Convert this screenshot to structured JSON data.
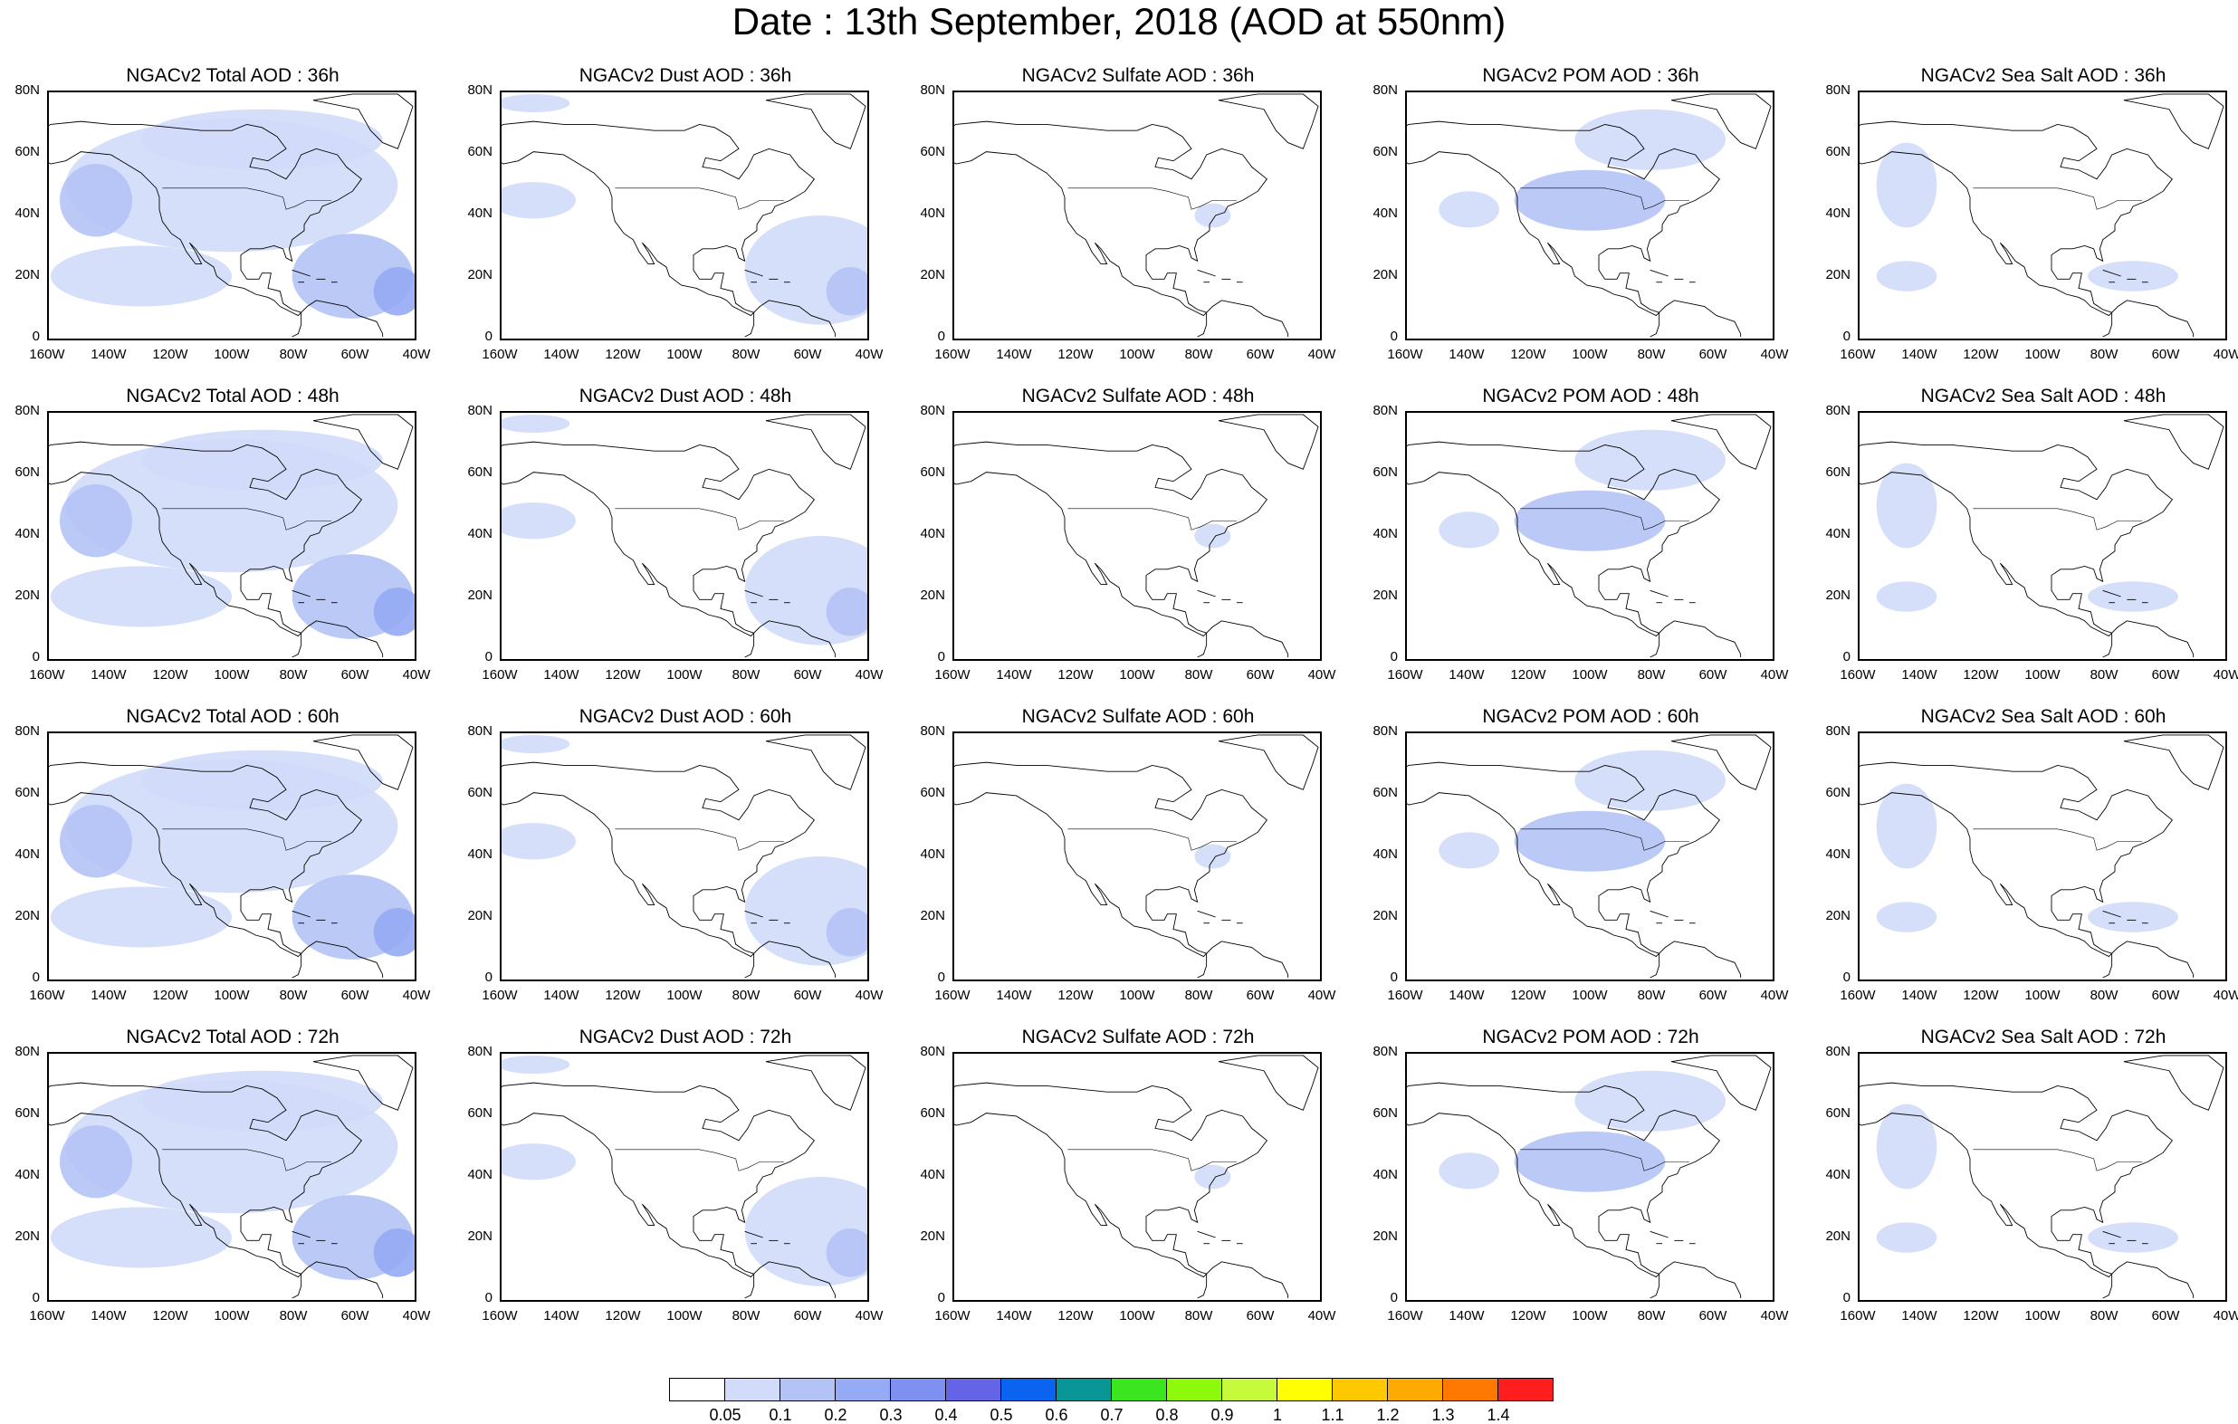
{
  "title": "Date : 13th September, 2018 (AOD at 550nm)",
  "lat_ticks": [
    "80N",
    "60N",
    "40N",
    "20N",
    "0"
  ],
  "lon_ticks": [
    "160W",
    "140W",
    "120W",
    "100W",
    "80W",
    "60W",
    "40W"
  ],
  "panels": [
    [
      "NGACv2 Total AOD : 36h",
      "NGACv2 Dust AOD : 36h",
      "NGACv2 Sulfate AOD : 36h",
      "NGACv2 POM AOD : 36h",
      "NGACv2 Sea Salt AOD : 36h"
    ],
    [
      "NGACv2 Total AOD : 48h",
      "NGACv2 Dust AOD : 48h",
      "NGACv2 Sulfate AOD : 48h",
      "NGACv2 POM AOD : 48h",
      "NGACv2 Sea Salt AOD : 48h"
    ],
    [
      "NGACv2 Total AOD : 60h",
      "NGACv2 Dust AOD : 60h",
      "NGACv2 Sulfate AOD : 60h",
      "NGACv2 POM AOD : 60h",
      "NGACv2 Sea Salt AOD : 60h"
    ],
    [
      "NGACv2 Total AOD : 72h",
      "NGACv2 Dust AOD : 72h",
      "NGACv2 Sulfate AOD : 72h",
      "NGACv2 POM AOD : 72h",
      "NGACv2 Sea Salt  AOD : 72h"
    ]
  ],
  "colorbar": {
    "labels": [
      "0.05",
      "0.1",
      "0.2",
      "0.3",
      "0.4",
      "0.5",
      "0.6",
      "0.7",
      "0.8",
      "0.9",
      "1",
      "1.1",
      "1.2",
      "1.3",
      "1.4"
    ],
    "colors": [
      "#ffffff",
      "#d2dcfa",
      "#b4c3f5",
      "#96aaf5",
      "#7f91f0",
      "#6464e6",
      "#0a64f0",
      "#0a9696",
      "#3ce61e",
      "#8cfa0a",
      "#c8fa3c",
      "#ffff00",
      "#ffc800",
      "#ffaa00",
      "#ff7800",
      "#ff1e1e"
    ]
  }
}
